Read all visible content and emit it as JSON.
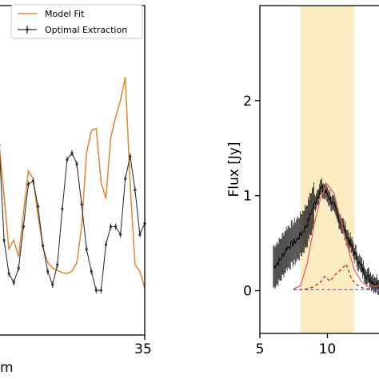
{
  "chart_data": [
    {
      "type": "line",
      "panel": "left",
      "xlabel": "m",
      "ylabel": "",
      "xlim": [
        5,
        35
      ],
      "x_ticks": [
        35
      ],
      "x_tick_labels": [
        "35"
      ],
      "legend": {
        "placement": "top-right",
        "entries": [
          "Model Fit",
          "Optimal Extraction"
        ]
      },
      "colors": {
        "model": "#e08a3c",
        "data": "#333333"
      },
      "series": [
        {
          "name": "Model Fit",
          "x": [
            5,
            6,
            7,
            8,
            9,
            10,
            11,
            12,
            13,
            14,
            15,
            16,
            17,
            18,
            19,
            20,
            21,
            22,
            23,
            24,
            25,
            26,
            27,
            28,
            29,
            30,
            31,
            32,
            33,
            34,
            35
          ],
          "values": [
            1.35,
            0.9,
            0.42,
            0.5,
            0.35,
            0.74,
            1.12,
            1.05,
            0.72,
            0.44,
            0.3,
            0.25,
            0.23,
            0.21,
            0.2,
            0.22,
            0.3,
            0.62,
            1.28,
            1.48,
            1.5,
            1.02,
            0.87,
            1.42,
            1.6,
            1.75,
            1.96,
            1.0,
            0.28,
            0.22,
            0.07
          ]
        },
        {
          "name": "Optimal Extraction",
          "x": [
            5,
            6,
            7,
            8,
            9,
            10,
            11,
            12,
            13,
            14,
            15,
            16,
            17,
            18,
            19,
            20,
            21,
            22,
            23,
            24,
            25,
            26,
            27,
            28,
            29,
            30,
            31,
            32,
            33,
            34,
            35
          ],
          "values": [
            1.35,
            0.5,
            0.2,
            0.12,
            0.25,
            0.62,
            1.0,
            1.03,
            0.8,
            0.45,
            0.22,
            0.1,
            0.28,
            0.78,
            1.22,
            1.28,
            1.18,
            0.82,
            0.42,
            0.22,
            0.05,
            0.05,
            0.46,
            0.62,
            0.62,
            0.55,
            1.05,
            1.25,
            0.95,
            0.55,
            0.65
          ]
        }
      ]
    },
    {
      "type": "line",
      "panel": "right",
      "xlabel": "",
      "ylabel": "Flux [Jy]",
      "xlim": [
        5,
        14
      ],
      "ylim": [
        -0.45,
        3.0
      ],
      "x_ticks": [
        5,
        10
      ],
      "y_ticks": [
        0,
        1,
        2
      ],
      "highlight_band": {
        "x": [
          8,
          12
        ],
        "color": "#fcecc2"
      },
      "colors": {
        "data": "#111111",
        "total_model": "#e06060",
        "component": "#cc2222",
        "baseline": "#5566aa"
      },
      "series": [
        {
          "x": [
            6,
            6.5,
            7,
            7.5,
            8,
            8.5,
            9,
            9.5,
            10,
            10.5,
            11,
            11.5,
            12,
            12.5,
            13,
            13.5,
            14
          ],
          "values": [
            0.25,
            0.32,
            0.45,
            0.5,
            0.58,
            0.7,
            0.9,
            1.08,
            1.02,
            0.88,
            0.72,
            0.56,
            0.4,
            0.25,
            0.14,
            0.08,
            0.05
          ]
        },
        {
          "x": [
            7.5,
            8,
            8.5,
            9,
            9.5,
            10,
            10.5,
            11,
            11.5,
            12,
            12.5,
            13,
            13.5,
            14
          ],
          "values": [
            0.02,
            0.05,
            0.28,
            0.68,
            0.98,
            1.12,
            1.02,
            0.74,
            0.46,
            0.22,
            0.1,
            0.05,
            0.05,
            0.05
          ]
        },
        {
          "x": [
            7.5,
            8,
            8.5,
            9,
            9.5,
            9.8,
            10.2,
            10.6,
            11,
            11.4,
            11.8,
            12.2,
            12.6,
            13,
            13.5,
            14
          ],
          "values": [
            0.01,
            0.01,
            0.02,
            0.04,
            0.09,
            0.15,
            0.1,
            0.17,
            0.22,
            0.28,
            0.12,
            0.06,
            0.03,
            0.02,
            0.01,
            0.01
          ]
        },
        {
          "x": [
            7.5,
            14
          ],
          "values": [
            0.01,
            0.01
          ]
        }
      ]
    }
  ]
}
